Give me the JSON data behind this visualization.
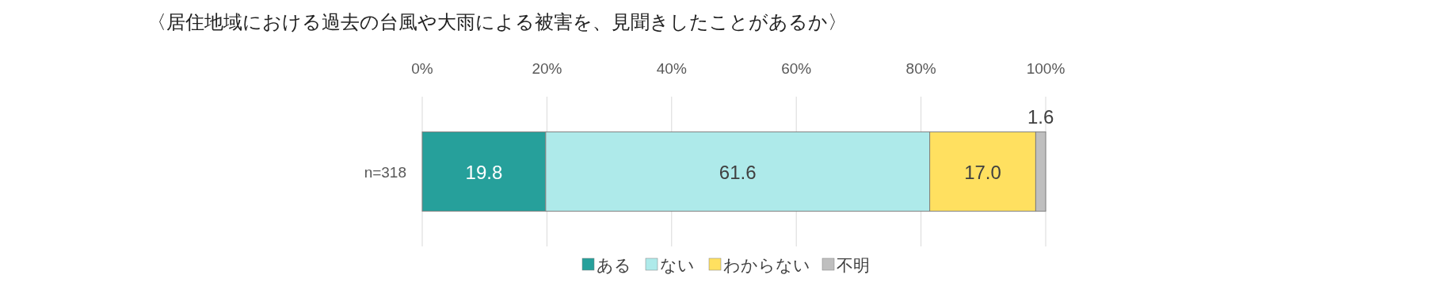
{
  "chart_data": {
    "type": "bar",
    "orientation": "horizontal",
    "stacked": true,
    "title": "〈居住地域における過去の台風や大雨による被害を、見聞きしたことがあるか〉",
    "categories": [
      "n=318"
    ],
    "series": [
      {
        "name": "ある",
        "color": "#26a09b",
        "values": [
          19.8
        ],
        "value_labels": [
          "19.8"
        ]
      },
      {
        "name": "ない",
        "color": "#aeeaea",
        "values": [
          61.6
        ],
        "value_labels": [
          "61.6"
        ]
      },
      {
        "name": "わからない",
        "color": "#ffe060",
        "values": [
          17.0
        ],
        "value_labels": [
          "17.0"
        ]
      },
      {
        "name": "不明",
        "color": "#bfbfbf",
        "values": [
          1.6
        ],
        "value_labels": [
          "1.6"
        ]
      }
    ],
    "xlim": [
      0,
      100
    ],
    "xticks": [
      {
        "value": 0,
        "label": "0%"
      },
      {
        "value": 20,
        "label": "20%"
      },
      {
        "value": 40,
        "label": "40%"
      },
      {
        "value": 60,
        "label": "60%"
      },
      {
        "value": 80,
        "label": "80%"
      },
      {
        "value": 100,
        "label": "100%"
      }
    ],
    "grid": "x",
    "legend": "bottom"
  }
}
